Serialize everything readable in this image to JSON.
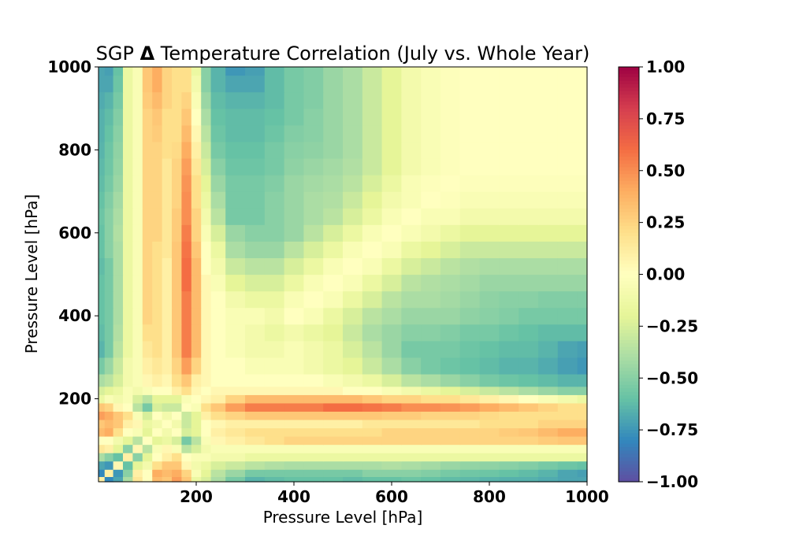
{
  "chart_data": {
    "type": "heatmap",
    "title": "SGP Δ Temperature Correlation (July vs. Whole Year)",
    "title_prefix": "SGP ",
    "title_symbol": "Δ",
    "title_suffix": " Temperature Correlation (July vs. Whole Year)",
    "xlabel": "Pressure Level [hPa]",
    "ylabel": "Pressure Level [hPa]",
    "xlim": [
      0,
      1000
    ],
    "ylim": [
      0,
      1000
    ],
    "x_ticks": [
      200,
      400,
      600,
      800,
      1000
    ],
    "x_tick_labels": [
      "200",
      "400",
      "600",
      "800",
      "1000"
    ],
    "y_ticks": [
      200,
      400,
      600,
      800,
      1000
    ],
    "y_tick_labels": [
      "200",
      "400",
      "600",
      "800",
      "1000"
    ],
    "colorbar": {
      "range": [
        -1.0,
        1.0
      ],
      "colormap": "Spectral_r",
      "ticks": [
        1.0,
        0.75,
        0.5,
        0.25,
        0.0,
        -0.25,
        -0.5,
        -0.75,
        -1.0
      ],
      "tick_labels": [
        "1.00",
        "0.75",
        "0.50",
        "0.25",
        "0.00",
        "−0.25",
        "−0.50",
        "−0.75",
        "−1.00"
      ]
    },
    "levels_hPa": [
      5,
      20,
      40,
      60,
      80,
      100,
      120,
      140,
      160,
      180,
      200,
      220,
      240,
      280,
      320,
      360,
      400,
      440,
      480,
      520,
      560,
      600,
      640,
      680,
      720,
      760,
      800,
      840,
      880,
      920,
      960,
      1000
    ],
    "values": [
      [
        0.1,
        -0.8,
        -0.7,
        -0.4,
        0.15,
        0.0,
        0.35,
        0.3,
        0.45,
        0.3,
        -0.15,
        -0.25,
        -0.4,
        -0.55,
        -0.65,
        -0.62,
        -0.6,
        -0.6,
        -0.6,
        -0.62,
        -0.6,
        -0.6,
        -0.58,
        -0.6,
        -0.62,
        -0.63,
        -0.65,
        -0.66,
        -0.66,
        -0.68,
        -0.7,
        -0.7
      ],
      [
        -0.8,
        0.1,
        -0.75,
        -0.5,
        0.1,
        0.0,
        0.4,
        0.35,
        0.4,
        0.25,
        -0.05,
        -0.2,
        -0.35,
        -0.45,
        -0.55,
        -0.55,
        -0.55,
        -0.55,
        -0.55,
        -0.55,
        -0.5,
        -0.5,
        -0.5,
        -0.52,
        -0.55,
        -0.57,
        -0.58,
        -0.6,
        -0.62,
        -0.65,
        -0.7,
        -0.72
      ],
      [
        -0.7,
        -0.75,
        0.05,
        -0.6,
        -0.2,
        -0.1,
        0.2,
        0.3,
        0.3,
        0.05,
        -0.1,
        -0.15,
        -0.25,
        -0.3,
        -0.35,
        -0.38,
        -0.4,
        -0.4,
        -0.4,
        -0.4,
        -0.4,
        -0.38,
        -0.4,
        -0.42,
        -0.45,
        -0.47,
        -0.48,
        -0.5,
        -0.52,
        -0.55,
        -0.58,
        -0.6
      ],
      [
        -0.4,
        -0.5,
        -0.6,
        0.1,
        -0.5,
        -0.2,
        0.0,
        0.1,
        0.2,
        0.0,
        -0.05,
        -0.05,
        -0.1,
        -0.1,
        -0.15,
        -0.15,
        -0.15,
        -0.15,
        -0.15,
        -0.15,
        -0.15,
        -0.15,
        -0.15,
        -0.15,
        -0.15,
        -0.15,
        -0.15,
        -0.15,
        -0.15,
        -0.15,
        -0.15,
        -0.15
      ],
      [
        0.15,
        0.1,
        -0.2,
        -0.5,
        0.05,
        -0.35,
        -0.05,
        0.05,
        -0.05,
        -0.35,
        -0.25,
        -0.1,
        -0.05,
        -0.05,
        -0.05,
        -0.05,
        -0.05,
        -0.05,
        -0.05,
        -0.05,
        -0.05,
        -0.05,
        -0.05,
        -0.05,
        -0.05,
        -0.05,
        -0.05,
        -0.05,
        -0.05,
        -0.05,
        -0.05,
        -0.05
      ],
      [
        0.0,
        0.0,
        -0.1,
        -0.2,
        -0.35,
        0.0,
        -0.2,
        -0.15,
        -0.25,
        -0.55,
        -0.35,
        -0.05,
        0.05,
        0.1,
        0.15,
        0.2,
        0.25,
        0.25,
        0.25,
        0.25,
        0.25,
        0.25,
        0.25,
        0.25,
        0.25,
        0.25,
        0.25,
        0.25,
        0.25,
        0.28,
        0.3,
        0.3
      ],
      [
        0.35,
        0.4,
        0.2,
        0.0,
        -0.05,
        -0.2,
        0.0,
        -0.1,
        0.0,
        -0.25,
        -0.2,
        0.0,
        0.1,
        0.15,
        0.2,
        0.2,
        0.2,
        0.2,
        0.2,
        0.2,
        0.2,
        0.25,
        0.25,
        0.25,
        0.25,
        0.25,
        0.25,
        0.28,
        0.3,
        0.35,
        0.4,
        0.4
      ],
      [
        0.3,
        0.35,
        0.3,
        0.1,
        0.05,
        -0.15,
        -0.1,
        0.0,
        -0.1,
        -0.3,
        -0.2,
        0.0,
        0.05,
        0.1,
        0.1,
        0.1,
        0.1,
        0.1,
        0.1,
        0.1,
        0.15,
        0.15,
        0.15,
        0.15,
        0.15,
        0.15,
        0.2,
        0.2,
        0.2,
        0.25,
        0.25,
        0.25
      ],
      [
        0.45,
        0.4,
        0.3,
        0.2,
        -0.05,
        -0.25,
        0.0,
        -0.1,
        0.0,
        -0.3,
        -0.2,
        0.1,
        0.2,
        0.25,
        0.3,
        0.3,
        0.3,
        0.3,
        0.3,
        0.3,
        0.3,
        0.28,
        0.28,
        0.25,
        0.25,
        0.25,
        0.22,
        0.2,
        0.2,
        0.2,
        0.2,
        0.2
      ],
      [
        0.3,
        0.25,
        0.05,
        0.0,
        -0.35,
        -0.55,
        -0.25,
        -0.3,
        -0.3,
        0.0,
        -0.05,
        0.2,
        0.3,
        0.45,
        0.55,
        0.55,
        0.55,
        0.55,
        0.6,
        0.6,
        0.58,
        0.55,
        0.5,
        0.5,
        0.48,
        0.45,
        0.4,
        0.35,
        0.3,
        0.25,
        0.2,
        0.2
      ],
      [
        -0.15,
        -0.05,
        -0.1,
        -0.05,
        -0.25,
        -0.35,
        -0.2,
        -0.2,
        -0.2,
        -0.05,
        0.0,
        0.05,
        0.1,
        0.25,
        0.35,
        0.35,
        0.35,
        0.35,
        0.35,
        0.35,
        0.3,
        0.25,
        0.25,
        0.2,
        0.2,
        0.15,
        0.1,
        0.05,
        0.0,
        -0.05,
        -0.1,
        -0.15
      ],
      [
        -0.25,
        -0.2,
        -0.15,
        -0.05,
        -0.1,
        -0.05,
        0.0,
        0.0,
        0.1,
        0.2,
        0.05,
        0.0,
        0.05,
        0.05,
        0.05,
        0.05,
        0.05,
        0.05,
        0.05,
        0.0,
        0.0,
        -0.05,
        -0.1,
        -0.15,
        -0.2,
        -0.25,
        -0.3,
        -0.35,
        -0.4,
        -0.45,
        -0.5,
        -0.5
      ],
      [
        -0.4,
        -0.35,
        -0.25,
        -0.1,
        -0.05,
        0.05,
        0.1,
        0.05,
        0.2,
        0.3,
        0.1,
        0.05,
        0.0,
        0.0,
        0.0,
        0.0,
        0.0,
        0.0,
        -0.05,
        -0.1,
        -0.15,
        -0.25,
        -0.35,
        -0.4,
        -0.45,
        -0.5,
        -0.55,
        -0.58,
        -0.6,
        -0.62,
        -0.65,
        -0.65
      ],
      [
        -0.55,
        -0.45,
        -0.3,
        -0.1,
        -0.05,
        0.1,
        0.15,
        0.1,
        0.25,
        0.45,
        0.25,
        0.05,
        0.0,
        0.0,
        -0.05,
        -0.05,
        -0.05,
        -0.1,
        -0.15,
        -0.2,
        -0.3,
        -0.4,
        -0.5,
        -0.55,
        -0.58,
        -0.6,
        -0.62,
        -0.65,
        -0.65,
        -0.68,
        -0.72,
        -0.75
      ],
      [
        -0.65,
        -0.55,
        -0.35,
        -0.15,
        -0.05,
        0.15,
        0.2,
        0.1,
        0.3,
        0.55,
        0.35,
        0.05,
        0.0,
        -0.05,
        -0.1,
        -0.1,
        -0.05,
        -0.1,
        -0.15,
        -0.25,
        -0.35,
        -0.45,
        -0.55,
        -0.55,
        -0.55,
        -0.58,
        -0.6,
        -0.62,
        -0.62,
        -0.65,
        -0.7,
        -0.72
      ],
      [
        -0.62,
        -0.55,
        -0.38,
        -0.15,
        -0.05,
        0.2,
        0.2,
        0.1,
        0.3,
        0.55,
        0.35,
        0.05,
        0.0,
        -0.05,
        -0.1,
        -0.15,
        -0.1,
        -0.15,
        -0.2,
        -0.3,
        -0.4,
        -0.45,
        -0.5,
        -0.5,
        -0.52,
        -0.55,
        -0.55,
        -0.58,
        -0.6,
        -0.62,
        -0.62,
        -0.62
      ],
      [
        -0.6,
        -0.55,
        -0.4,
        -0.15,
        -0.05,
        0.25,
        0.2,
        0.1,
        0.3,
        0.55,
        0.35,
        0.05,
        0.0,
        -0.05,
        -0.05,
        -0.1,
        0.0,
        -0.05,
        -0.15,
        -0.25,
        -0.35,
        -0.4,
        -0.45,
        -0.45,
        -0.45,
        -0.48,
        -0.5,
        -0.52,
        -0.55,
        -0.55,
        -0.55,
        -0.55
      ],
      [
        -0.6,
        -0.55,
        -0.4,
        -0.15,
        -0.05,
        0.25,
        0.2,
        0.1,
        0.3,
        0.55,
        0.35,
        0.05,
        0.0,
        -0.1,
        -0.15,
        -0.15,
        -0.05,
        0.0,
        -0.05,
        -0.15,
        -0.25,
        -0.35,
        -0.4,
        -0.4,
        -0.42,
        -0.45,
        -0.48,
        -0.5,
        -0.5,
        -0.52,
        -0.52,
        -0.52
      ],
      [
        -0.6,
        -0.55,
        -0.4,
        -0.15,
        -0.05,
        0.25,
        0.2,
        0.1,
        0.3,
        0.6,
        0.35,
        0.05,
        -0.05,
        -0.2,
        -0.25,
        -0.25,
        -0.15,
        -0.05,
        0.0,
        -0.05,
        -0.15,
        -0.25,
        -0.35,
        -0.38,
        -0.4,
        -0.42,
        -0.45,
        -0.45,
        -0.45,
        -0.45,
        -0.45,
        -0.45
      ],
      [
        -0.62,
        -0.55,
        -0.4,
        -0.15,
        -0.05,
        0.25,
        0.2,
        0.1,
        0.3,
        0.6,
        0.35,
        0.0,
        -0.1,
        -0.3,
        -0.35,
        -0.35,
        -0.25,
        -0.15,
        -0.05,
        0.0,
        -0.05,
        -0.15,
        -0.25,
        -0.3,
        -0.35,
        -0.38,
        -0.4,
        -0.4,
        -0.4,
        -0.4,
        -0.4,
        -0.4
      ],
      [
        -0.6,
        -0.5,
        -0.4,
        -0.15,
        -0.05,
        0.25,
        0.2,
        0.15,
        0.3,
        0.58,
        0.3,
        0.0,
        -0.15,
        -0.4,
        -0.45,
        -0.45,
        -0.35,
        -0.25,
        -0.15,
        -0.05,
        0.0,
        -0.05,
        -0.15,
        -0.2,
        -0.25,
        -0.3,
        -0.3,
        -0.3,
        -0.3,
        -0.3,
        -0.3,
        -0.3
      ],
      [
        -0.6,
        -0.5,
        -0.38,
        -0.15,
        -0.05,
        0.25,
        0.25,
        0.15,
        0.28,
        0.55,
        0.25,
        -0.05,
        -0.25,
        -0.45,
        -0.5,
        -0.5,
        -0.45,
        -0.35,
        -0.25,
        -0.15,
        -0.05,
        0.0,
        -0.05,
        -0.1,
        -0.15,
        -0.2,
        -0.2,
        -0.2,
        -0.2,
        -0.2,
        -0.2,
        -0.2
      ],
      [
        -0.58,
        -0.5,
        -0.4,
        -0.15,
        -0.05,
        0.25,
        0.25,
        0.15,
        0.28,
        0.5,
        0.25,
        -0.1,
        -0.35,
        -0.55,
        -0.55,
        -0.5,
        -0.45,
        -0.4,
        -0.35,
        -0.25,
        -0.15,
        -0.05,
        0.0,
        -0.05,
        -0.05,
        -0.1,
        -0.1,
        -0.1,
        -0.1,
        -0.1,
        -0.1,
        -0.1
      ],
      [
        -0.6,
        -0.52,
        -0.42,
        -0.15,
        -0.05,
        0.25,
        0.25,
        0.15,
        0.25,
        0.5,
        0.2,
        -0.15,
        -0.4,
        -0.55,
        -0.55,
        -0.5,
        -0.45,
        -0.4,
        -0.38,
        -0.3,
        -0.2,
        -0.1,
        -0.05,
        0.0,
        -0.02,
        -0.05,
        -0.05,
        -0.05,
        -0.05,
        -0.05,
        -0.05,
        -0.05
      ],
      [
        -0.62,
        -0.55,
        -0.45,
        -0.15,
        -0.05,
        0.25,
        0.25,
        0.15,
        0.25,
        0.48,
        0.2,
        -0.2,
        -0.45,
        -0.55,
        -0.55,
        -0.52,
        -0.45,
        -0.42,
        -0.4,
        -0.35,
        -0.25,
        -0.15,
        -0.05,
        -0.02,
        0.0,
        -0.02,
        -0.02,
        -0.02,
        -0.02,
        -0.02,
        -0.02,
        -0.02
      ],
      [
        -0.63,
        -0.57,
        -0.47,
        -0.15,
        -0.05,
        0.25,
        0.25,
        0.15,
        0.25,
        0.45,
        0.15,
        -0.25,
        -0.5,
        -0.58,
        -0.58,
        -0.55,
        -0.48,
        -0.45,
        -0.42,
        -0.38,
        -0.3,
        -0.2,
        -0.1,
        -0.05,
        -0.02,
        0.0,
        0.0,
        0.0,
        0.0,
        0.0,
        0.0,
        0.0
      ],
      [
        -0.65,
        -0.58,
        -0.48,
        -0.15,
        -0.05,
        0.25,
        0.25,
        0.2,
        0.22,
        0.4,
        0.1,
        -0.3,
        -0.55,
        -0.6,
        -0.6,
        -0.55,
        -0.5,
        -0.48,
        -0.45,
        -0.4,
        -0.3,
        -0.2,
        -0.1,
        -0.05,
        -0.02,
        0.0,
        0.0,
        0.0,
        0.0,
        0.0,
        0.0,
        0.0
      ],
      [
        -0.66,
        -0.6,
        -0.5,
        -0.15,
        -0.05,
        0.25,
        0.28,
        0.2,
        0.2,
        0.35,
        0.05,
        -0.35,
        -0.58,
        -0.62,
        -0.62,
        -0.58,
        -0.52,
        -0.5,
        -0.45,
        -0.4,
        -0.3,
        -0.2,
        -0.1,
        -0.05,
        -0.02,
        0.0,
        0.0,
        0.0,
        0.0,
        0.0,
        0.0,
        0.0
      ],
      [
        -0.66,
        -0.62,
        -0.52,
        -0.15,
        -0.05,
        0.25,
        0.3,
        0.2,
        0.2,
        0.3,
        0.0,
        -0.4,
        -0.6,
        -0.62,
        -0.62,
        -0.6,
        -0.55,
        -0.5,
        -0.45,
        -0.4,
        -0.3,
        -0.2,
        -0.1,
        -0.05,
        -0.02,
        0.0,
        0.0,
        0.0,
        0.0,
        0.0,
        0.0,
        0.0
      ],
      [
        -0.68,
        -0.65,
        -0.55,
        -0.15,
        -0.05,
        0.28,
        0.35,
        0.25,
        0.2,
        0.25,
        -0.05,
        -0.45,
        -0.62,
        -0.65,
        -0.65,
        -0.62,
        -0.55,
        -0.52,
        -0.45,
        -0.4,
        -0.3,
        -0.2,
        -0.1,
        -0.05,
        -0.02,
        0.0,
        0.0,
        0.0,
        0.0,
        0.0,
        0.0,
        0.0
      ],
      [
        -0.7,
        -0.7,
        -0.58,
        -0.15,
        -0.05,
        0.3,
        0.4,
        0.25,
        0.2,
        0.2,
        -0.1,
        -0.5,
        -0.65,
        -0.7,
        -0.7,
        -0.62,
        -0.55,
        -0.52,
        -0.45,
        -0.4,
        -0.3,
        -0.2,
        -0.1,
        -0.05,
        -0.02,
        0.0,
        0.0,
        0.0,
        0.0,
        0.0,
        0.0,
        0.0
      ],
      [
        -0.7,
        -0.72,
        -0.6,
        -0.15,
        -0.05,
        0.3,
        0.4,
        0.25,
        0.2,
        0.2,
        -0.15,
        -0.5,
        -0.65,
        -0.75,
        -0.72,
        -0.62,
        -0.55,
        -0.52,
        -0.45,
        -0.4,
        -0.3,
        -0.2,
        -0.1,
        -0.05,
        -0.02,
        0.0,
        0.0,
        0.0,
        0.0,
        0.0,
        0.0,
        0.0
      ]
    ]
  }
}
